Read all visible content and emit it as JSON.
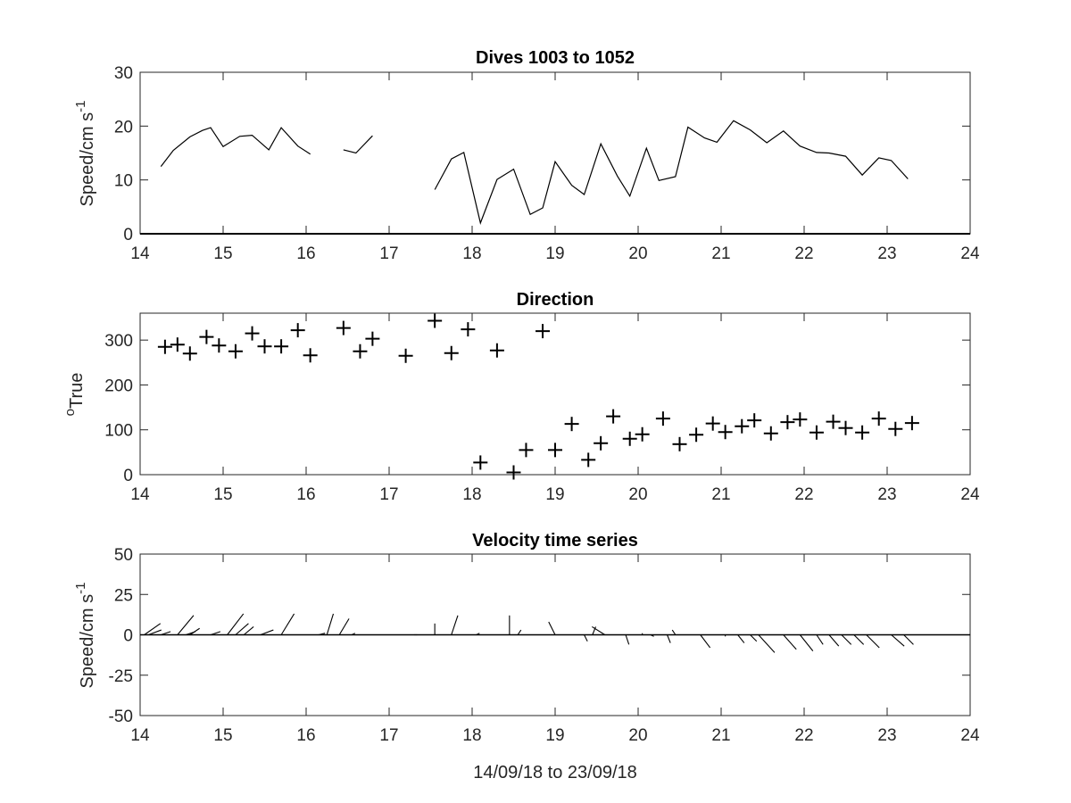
{
  "chart_data": [
    {
      "type": "line",
      "title": "Dives 1003 to 1052",
      "ylabel": "Speed/cm s",
      "ylabel_superscript": "-1",
      "xlim": [
        14,
        24
      ],
      "ylim": [
        0,
        30
      ],
      "xticks": [
        "14",
        "15",
        "16",
        "17",
        "18",
        "19",
        "20",
        "21",
        "22",
        "23",
        "24"
      ],
      "yticks": [
        "0",
        "10",
        "20",
        "30"
      ],
      "segments": [
        [
          [
            14.25,
            12.5
          ],
          [
            14.4,
            15.5
          ],
          [
            14.6,
            18
          ],
          [
            14.75,
            19.2
          ],
          [
            14.85,
            19.7
          ],
          [
            15.0,
            16.2
          ],
          [
            15.2,
            18.1
          ],
          [
            15.35,
            18.3
          ],
          [
            15.55,
            15.6
          ],
          [
            15.7,
            19.7
          ],
          [
            15.9,
            16.3
          ],
          [
            16.05,
            14.8
          ]
        ],
        [
          [
            16.45,
            15.6
          ],
          [
            16.6,
            15.0
          ],
          [
            16.8,
            18.2
          ]
        ],
        [
          [
            17.55,
            8.2
          ],
          [
            17.75,
            13.9
          ],
          [
            17.9,
            15.1
          ],
          [
            18.1,
            2.0
          ],
          [
            18.3,
            10.1
          ],
          [
            18.5,
            12.0
          ],
          [
            18.7,
            3.6
          ],
          [
            18.85,
            4.8
          ],
          [
            19.0,
            13.4
          ],
          [
            19.2,
            9.0
          ],
          [
            19.35,
            7.3
          ],
          [
            19.55,
            16.7
          ],
          [
            19.75,
            10.7
          ],
          [
            19.9,
            7.0
          ],
          [
            20.1,
            15.9
          ],
          [
            20.25,
            9.9
          ],
          [
            20.45,
            10.6
          ],
          [
            20.6,
            19.8
          ],
          [
            20.8,
            17.8
          ],
          [
            20.95,
            17.0
          ],
          [
            21.15,
            21.0
          ],
          [
            21.35,
            19.3
          ],
          [
            21.55,
            16.9
          ],
          [
            21.75,
            19.1
          ],
          [
            21.95,
            16.3
          ],
          [
            22.15,
            15.1
          ],
          [
            22.3,
            15.0
          ],
          [
            22.5,
            14.4
          ],
          [
            22.7,
            10.9
          ],
          [
            22.9,
            14.1
          ],
          [
            23.05,
            13.6
          ],
          [
            23.25,
            10.2
          ]
        ]
      ]
    },
    {
      "type": "scatter",
      "title": "Direction",
      "ylabel": "True",
      "ylabel_superscript": "o",
      "xlim": [
        14,
        24
      ],
      "ylim": [
        0,
        360
      ],
      "xticks": [
        "14",
        "15",
        "16",
        "17",
        "18",
        "19",
        "20",
        "21",
        "22",
        "23",
        "24"
      ],
      "yticks": [
        "0",
        "100",
        "200",
        "300"
      ],
      "marker": "+",
      "points": [
        [
          14.3,
          285
        ],
        [
          14.45,
          290
        ],
        [
          14.6,
          270
        ],
        [
          14.8,
          307
        ],
        [
          14.95,
          288
        ],
        [
          15.15,
          275
        ],
        [
          15.35,
          315
        ],
        [
          15.5,
          286
        ],
        [
          15.7,
          286
        ],
        [
          15.9,
          322
        ],
        [
          16.05,
          266
        ],
        [
          16.45,
          327
        ],
        [
          16.65,
          275
        ],
        [
          16.8,
          303
        ],
        [
          17.2,
          265
        ],
        [
          17.55,
          343
        ],
        [
          17.75,
          271
        ],
        [
          17.95,
          324
        ],
        [
          18.1,
          27
        ],
        [
          18.3,
          277
        ],
        [
          18.5,
          5
        ],
        [
          18.65,
          55
        ],
        [
          18.85,
          320
        ],
        [
          19.0,
          55
        ],
        [
          19.2,
          113
        ],
        [
          19.4,
          33
        ],
        [
          19.55,
          70
        ],
        [
          19.7,
          130
        ],
        [
          19.9,
          80
        ],
        [
          20.05,
          90
        ],
        [
          20.3,
          125
        ],
        [
          20.5,
          68
        ],
        [
          20.7,
          89
        ],
        [
          20.9,
          114
        ],
        [
          21.05,
          95
        ],
        [
          21.25,
          108
        ],
        [
          21.4,
          121
        ],
        [
          21.6,
          92
        ],
        [
          21.8,
          117
        ],
        [
          21.95,
          123
        ],
        [
          22.15,
          94
        ],
        [
          22.35,
          118
        ],
        [
          22.5,
          104
        ],
        [
          22.7,
          94
        ],
        [
          22.9,
          125
        ],
        [
          23.1,
          102
        ],
        [
          23.3,
          115
        ]
      ]
    },
    {
      "type": "quiver",
      "title": "Velocity time series",
      "ylabel": "Speed/cm s",
      "ylabel_superscript": "-1",
      "xlabel": "14/09/18 to 23/09/18",
      "xlim": [
        14,
        24
      ],
      "ylim": [
        -50,
        50
      ],
      "xticks": [
        "14",
        "15",
        "16",
        "17",
        "18",
        "19",
        "20",
        "21",
        "22",
        "23",
        "24"
      ],
      "yticks": [
        "50",
        "25",
        "0",
        "-25",
        "-50"
      ],
      "baseline": 0,
      "vectors": [
        [
          14.05,
          -5,
          7
        ],
        [
          14.1,
          -4,
          3
        ],
        [
          14.25,
          -3,
          2
        ],
        [
          14.45,
          -5,
          12
        ],
        [
          14.55,
          -3,
          2
        ],
        [
          14.6,
          -3,
          4
        ],
        [
          14.85,
          -3,
          2
        ],
        [
          15.05,
          -5,
          13
        ],
        [
          15.15,
          -4,
          7
        ],
        [
          15.25,
          -3,
          5
        ],
        [
          15.45,
          -4,
          3
        ],
        [
          15.7,
          -4,
          13
        ],
        [
          16.15,
          -2,
          1
        ],
        [
          16.25,
          -2,
          13
        ],
        [
          16.4,
          -3,
          10
        ],
        [
          16.55,
          -1,
          1
        ],
        [
          17.3,
          -1,
          0
        ],
        [
          17.55,
          0,
          7
        ],
        [
          17.75,
          -2,
          12
        ],
        [
          18.05,
          -1,
          1
        ],
        [
          18.45,
          0,
          12
        ],
        [
          18.55,
          -1,
          3
        ],
        [
          19.0,
          2,
          8
        ],
        [
          19.35,
          -1,
          -4
        ],
        [
          19.45,
          -1,
          5
        ],
        [
          19.6,
          4,
          5
        ],
        [
          19.85,
          -1,
          -6
        ],
        [
          20.05,
          0,
          1
        ],
        [
          20.15,
          -1,
          -1
        ],
        [
          20.35,
          -1,
          -5
        ],
        [
          20.45,
          1,
          3
        ],
        [
          20.75,
          -3,
          -8
        ],
        [
          21.05,
          0,
          -1
        ],
        [
          21.2,
          -2,
          -5
        ],
        [
          21.35,
          -2,
          -4
        ],
        [
          21.45,
          -5,
          -11
        ],
        [
          21.75,
          -4,
          -9
        ],
        [
          21.95,
          -4,
          -10
        ],
        [
          22.15,
          -2,
          -6
        ],
        [
          22.3,
          -3,
          -7
        ],
        [
          22.45,
          -3,
          -6
        ],
        [
          22.6,
          -3,
          -6
        ],
        [
          22.75,
          -4,
          -8
        ],
        [
          23.05,
          -4,
          -7
        ],
        [
          23.2,
          -3,
          -6
        ]
      ]
    }
  ]
}
